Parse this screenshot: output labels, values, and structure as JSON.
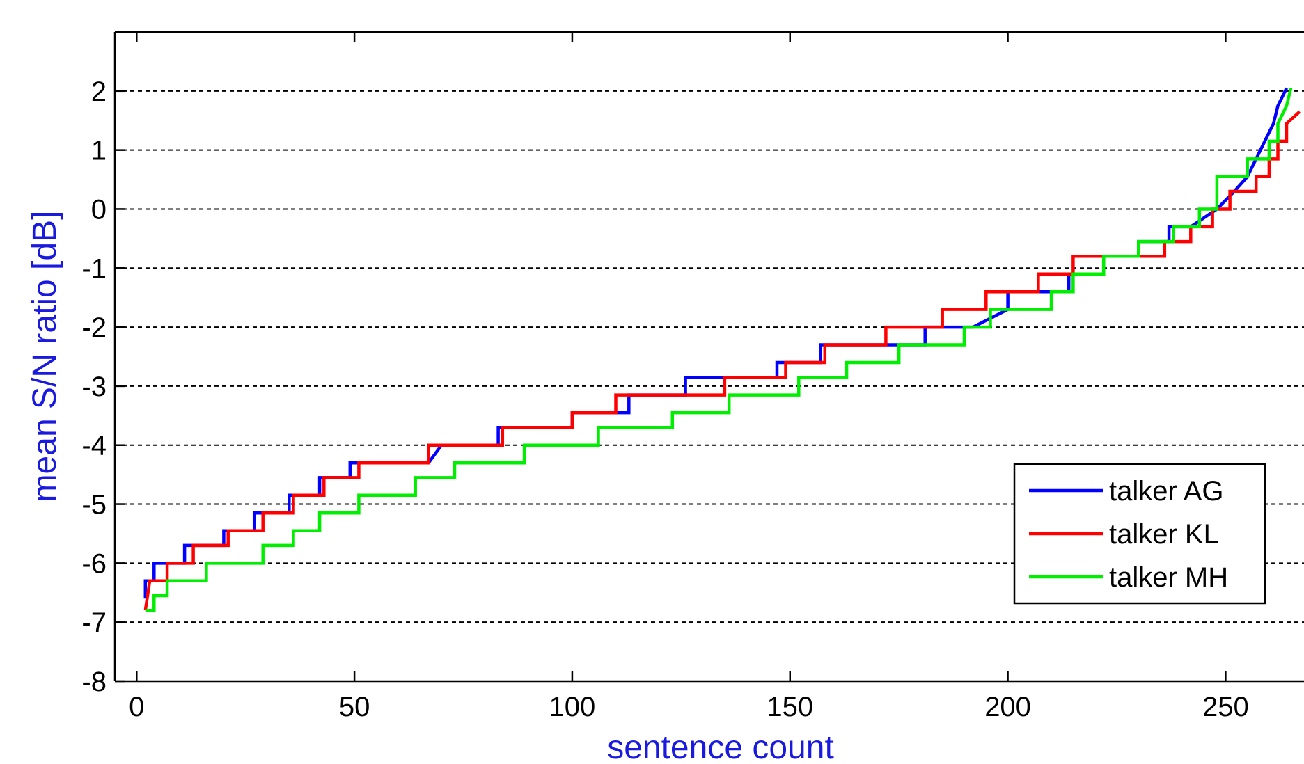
{
  "chart_data": {
    "type": "line",
    "title": "",
    "xlabel": "sentence count",
    "ylabel": "mean S/N ratio [dB]",
    "xlim": [
      -5,
      268
    ],
    "ylim": [
      -8,
      3
    ],
    "x_ticks": [
      0,
      50,
      100,
      150,
      200,
      250
    ],
    "y_ticks": [
      -8,
      -7,
      -6,
      -5,
      -4,
      -3,
      -2,
      -1,
      0,
      1,
      2
    ],
    "grid": "horizontal dashed",
    "legend_position": "bottom-right",
    "colors": {
      "axis_title": "#1a1adf"
    },
    "series": [
      {
        "name": "talker AG",
        "color": "#0000ff",
        "points": [
          [
            2,
            -6.6
          ],
          [
            2,
            -6.3
          ],
          [
            4,
            -6.3
          ],
          [
            4,
            -6.0
          ],
          [
            11,
            -6.0
          ],
          [
            11,
            -5.7
          ],
          [
            20,
            -5.7
          ],
          [
            20,
            -5.45
          ],
          [
            27,
            -5.45
          ],
          [
            27,
            -5.15
          ],
          [
            35,
            -5.15
          ],
          [
            35,
            -4.85
          ],
          [
            42,
            -4.85
          ],
          [
            42,
            -4.55
          ],
          [
            49,
            -4.55
          ],
          [
            49,
            -4.3
          ],
          [
            67,
            -4.3
          ],
          [
            70,
            -4.0
          ],
          [
            83,
            -4.0
          ],
          [
            83,
            -3.7
          ],
          [
            100,
            -3.7
          ],
          [
            100,
            -3.45
          ],
          [
            113,
            -3.45
          ],
          [
            113,
            -3.15
          ],
          [
            126,
            -3.15
          ],
          [
            126,
            -2.85
          ],
          [
            147,
            -2.85
          ],
          [
            147,
            -2.6
          ],
          [
            157,
            -2.6
          ],
          [
            157,
            -2.3
          ],
          [
            181,
            -2.3
          ],
          [
            181,
            -2.0
          ],
          [
            192,
            -2.0
          ],
          [
            200,
            -1.7
          ],
          [
            200,
            -1.4
          ],
          [
            214,
            -1.4
          ],
          [
            214,
            -1.1
          ],
          [
            222,
            -1.1
          ],
          [
            222,
            -0.8
          ],
          [
            230,
            -0.8
          ],
          [
            230,
            -0.55
          ],
          [
            237,
            -0.55
          ],
          [
            237,
            -0.3
          ],
          [
            242,
            -0.3
          ],
          [
            248,
            0.0
          ],
          [
            252,
            0.3
          ],
          [
            255,
            0.55
          ],
          [
            257,
            0.85
          ],
          [
            259,
            1.15
          ],
          [
            261,
            1.45
          ],
          [
            262,
            1.75
          ],
          [
            264,
            2.05
          ]
        ]
      },
      {
        "name": "talker KL",
        "color": "#ff0000",
        "points": [
          [
            2,
            -6.8
          ],
          [
            3,
            -6.3
          ],
          [
            7,
            -6.3
          ],
          [
            7,
            -6.0
          ],
          [
            13,
            -6.0
          ],
          [
            13,
            -5.7
          ],
          [
            21,
            -5.7
          ],
          [
            21,
            -5.45
          ],
          [
            29,
            -5.45
          ],
          [
            29,
            -5.15
          ],
          [
            36,
            -5.15
          ],
          [
            36,
            -4.85
          ],
          [
            43,
            -4.85
          ],
          [
            43,
            -4.55
          ],
          [
            51,
            -4.55
          ],
          [
            51,
            -4.3
          ],
          [
            67,
            -4.3
          ],
          [
            67,
            -4.0
          ],
          [
            84,
            -4.0
          ],
          [
            84,
            -3.7
          ],
          [
            100,
            -3.7
          ],
          [
            100,
            -3.45
          ],
          [
            110,
            -3.45
          ],
          [
            110,
            -3.15
          ],
          [
            135,
            -3.15
          ],
          [
            135,
            -2.85
          ],
          [
            149,
            -2.85
          ],
          [
            149,
            -2.6
          ],
          [
            158,
            -2.6
          ],
          [
            158,
            -2.3
          ],
          [
            172,
            -2.3
          ],
          [
            172,
            -2.0
          ],
          [
            185,
            -2.0
          ],
          [
            185,
            -1.7
          ],
          [
            195,
            -1.7
          ],
          [
            195,
            -1.4
          ],
          [
            207,
            -1.4
          ],
          [
            207,
            -1.1
          ],
          [
            215,
            -1.1
          ],
          [
            215,
            -0.8
          ],
          [
            236,
            -0.8
          ],
          [
            236,
            -0.55
          ],
          [
            242,
            -0.55
          ],
          [
            242,
            -0.3
          ],
          [
            247,
            -0.3
          ],
          [
            247,
            0.0
          ],
          [
            251,
            0.0
          ],
          [
            251,
            0.3
          ],
          [
            257,
            0.3
          ],
          [
            257,
            0.55
          ],
          [
            260,
            0.55
          ],
          [
            260,
            0.85
          ],
          [
            262,
            0.85
          ],
          [
            262,
            1.15
          ],
          [
            264,
            1.15
          ],
          [
            264,
            1.45
          ],
          [
            267,
            1.65
          ]
        ]
      },
      {
        "name": "talker MH",
        "color": "#00ee00",
        "points": [
          [
            2,
            -6.8
          ],
          [
            4,
            -6.8
          ],
          [
            4,
            -6.55
          ],
          [
            7,
            -6.55
          ],
          [
            7,
            -6.3
          ],
          [
            16,
            -6.3
          ],
          [
            16,
            -6.0
          ],
          [
            29,
            -6.0
          ],
          [
            29,
            -5.7
          ],
          [
            36,
            -5.7
          ],
          [
            36,
            -5.45
          ],
          [
            42,
            -5.45
          ],
          [
            42,
            -5.15
          ],
          [
            51,
            -5.15
          ],
          [
            51,
            -4.85
          ],
          [
            64,
            -4.85
          ],
          [
            64,
            -4.55
          ],
          [
            73,
            -4.55
          ],
          [
            73,
            -4.3
          ],
          [
            89,
            -4.3
          ],
          [
            89,
            -4.0
          ],
          [
            106,
            -4.0
          ],
          [
            106,
            -3.7
          ],
          [
            123,
            -3.7
          ],
          [
            123,
            -3.45
          ],
          [
            136,
            -3.45
          ],
          [
            136,
            -3.15
          ],
          [
            152,
            -3.15
          ],
          [
            152,
            -2.85
          ],
          [
            163,
            -2.85
          ],
          [
            163,
            -2.6
          ],
          [
            175,
            -2.6
          ],
          [
            175,
            -2.3
          ],
          [
            190,
            -2.3
          ],
          [
            190,
            -2.0
          ],
          [
            196,
            -2.0
          ],
          [
            196,
            -1.7
          ],
          [
            210,
            -1.7
          ],
          [
            210,
            -1.4
          ],
          [
            215,
            -1.4
          ],
          [
            215,
            -1.1
          ],
          [
            222,
            -1.1
          ],
          [
            222,
            -0.8
          ],
          [
            230,
            -0.8
          ],
          [
            230,
            -0.55
          ],
          [
            238,
            -0.55
          ],
          [
            238,
            -0.3
          ],
          [
            244,
            -0.3
          ],
          [
            244,
            0.0
          ],
          [
            248,
            0.0
          ],
          [
            248,
            0.55
          ],
          [
            255,
            0.55
          ],
          [
            255,
            0.85
          ],
          [
            260,
            0.85
          ],
          [
            260,
            1.15
          ],
          [
            262,
            1.15
          ],
          [
            262,
            1.45
          ],
          [
            264,
            1.75
          ],
          [
            265,
            2.05
          ]
        ]
      }
    ]
  }
}
